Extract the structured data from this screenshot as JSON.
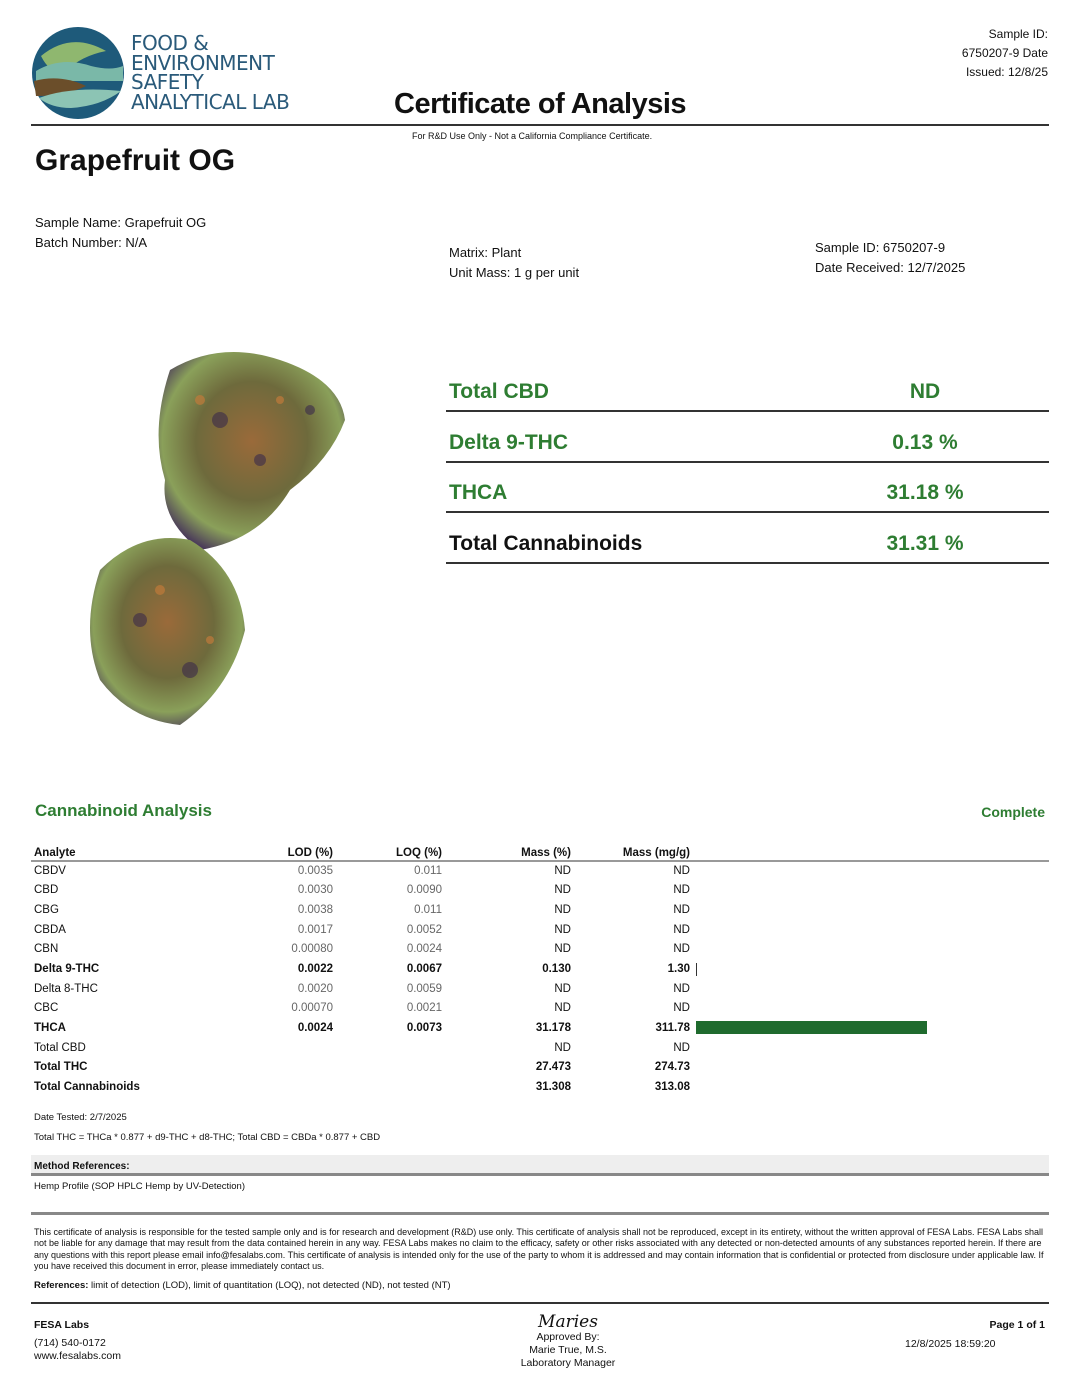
{
  "header": {
    "logo_text": [
      "FOOD &",
      "ENVIRONMENT",
      "SAFETY",
      "ANALYTICAL LAB"
    ],
    "title": "Certificate of Analysis",
    "sample_id_line1": "Sample ID:",
    "sample_id_line2": "6750207-9 Date",
    "issued": "Issued: 12/8/25",
    "subtitle": "For R&D Use Only - Not a California Compliance Certificate."
  },
  "product_name": "Grapefruit OG",
  "info": {
    "sample_name": "Sample Name: Grapefruit OG",
    "batch": "Batch Number: N/A",
    "matrix": "Matrix: Plant",
    "unit_mass": "Unit Mass: 1 g per unit",
    "sample_id": "Sample ID: 6750207-9",
    "date_received": "Date Received: 12/7/2025"
  },
  "summary": [
    {
      "label": "Total CBD",
      "value": "ND"
    },
    {
      "label": "Delta 9-THC",
      "value": "0.13 %"
    },
    {
      "label": "THCA",
      "value": "31.18 %"
    },
    {
      "label": "Total Cannabinoids",
      "value": "31.31 %"
    }
  ],
  "analysis": {
    "title": "Cannabinoid Analysis",
    "status": "Complete",
    "columns": [
      "Analyte",
      "LOD (%)",
      "LOQ (%)",
      "Mass (%)",
      "Mass (mg/g)"
    ],
    "rows": [
      {
        "analyte": "CBDV",
        "lod": "0.0035",
        "loq": "0.011",
        "mass_pct": "ND",
        "mass_mg": "ND",
        "bold": false
      },
      {
        "analyte": "CBD",
        "lod": "0.0030",
        "loq": "0.0090",
        "mass_pct": "ND",
        "mass_mg": "ND",
        "bold": false
      },
      {
        "analyte": "CBG",
        "lod": "0.0038",
        "loq": "0.011",
        "mass_pct": "ND",
        "mass_mg": "ND",
        "bold": false
      },
      {
        "analyte": "CBDA",
        "lod": "0.0017",
        "loq": "0.0052",
        "mass_pct": "ND",
        "mass_mg": "ND",
        "bold": false
      },
      {
        "analyte": "CBN",
        "lod": "0.00080",
        "loq": "0.0024",
        "mass_pct": "ND",
        "mass_mg": "ND",
        "bold": false
      },
      {
        "analyte": "Delta 9-THC",
        "lod": "0.0022",
        "loq": "0.0067",
        "mass_pct": "0.130",
        "mass_mg": "1.30",
        "bold": true,
        "bar": 1.3
      },
      {
        "analyte": "Delta 8-THC",
        "lod": "0.0020",
        "loq": "0.0059",
        "mass_pct": "ND",
        "mass_mg": "ND",
        "bold": false
      },
      {
        "analyte": "CBC",
        "lod": "0.00070",
        "loq": "0.0021",
        "mass_pct": "ND",
        "mass_mg": "ND",
        "bold": false
      },
      {
        "analyte": "THCA",
        "lod": "0.0024",
        "loq": "0.0073",
        "mass_pct": "31.178",
        "mass_mg": "311.78",
        "bold": true,
        "bar": 311.78
      },
      {
        "analyte": "Total CBD",
        "lod": "",
        "loq": "",
        "mass_pct": "ND",
        "mass_mg": "ND",
        "bold": false
      },
      {
        "analyte": "Total THC",
        "lod": "",
        "loq": "",
        "mass_pct": "27.473",
        "mass_mg": "274.73",
        "bold": true
      },
      {
        "analyte": "Total Cannabinoids",
        "lod": "",
        "loq": "",
        "mass_pct": "31.308",
        "mass_mg": "313.08",
        "bold": true
      }
    ],
    "bar_color": "#1f6b2e",
    "date_tested": "Date Tested: 2/7/2025",
    "formula": "Total THC = THCa * 0.877 + d9-THC + d8-THC; Total CBD = CBDa * 0.877 + CBD"
  },
  "method": {
    "title": "Method References:",
    "text": "Hemp Profile (SOP HPLC Hemp by UV-Detection)"
  },
  "disclaimer": "This certificate of analysis is responsible for the tested sample only and is for research and development (R&D) use only. This certificate of analysis shall not be reproduced, except in its entirety, without the written approval of FESA Labs. FESA Labs shall not be liable for any damage that may result from the data contained herein in any way. FESA Labs makes no claim to the efficacy, safety or other risks associated with any detected or non-detected amounts of any substances reported herein. If there are any questions with this report please email info@fesalabs.com. This certificate of analysis is intended only for the use of the party to whom it is addressed and may contain information that is confidential or protected from disclosure under applicable law. If you have received this document in error, please immediately contact us.",
  "references_label": "References:",
  "references": " limit of detection (LOD), limit of quantitation (LOQ), not detected (ND), not tested (NT)",
  "footer": {
    "lab": "FESA Labs",
    "phone": "(714) 540-0172",
    "web": "www.fesalabs.com",
    "signature": "Maries",
    "approved": "Approved By:",
    "approver": "Marie True, M.S.",
    "role": "Laboratory Manager",
    "page": "Page 1 of 1",
    "timestamp": "12/8/2025 18:59:20"
  }
}
